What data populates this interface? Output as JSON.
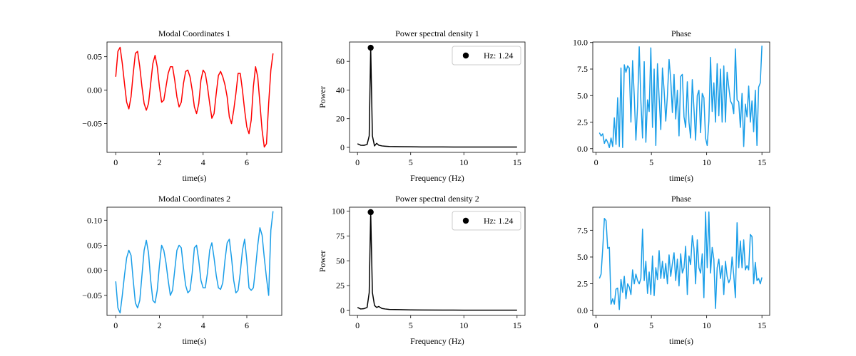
{
  "chart_data": [
    {
      "type": "line",
      "title": "Modal Coordinates 1",
      "xlabel": "time(s)",
      "ylabel": "",
      "color": "#ff0000",
      "xlim": [
        -0.4,
        7.6
      ],
      "ylim": [
        -0.093,
        0.072
      ],
      "xticks": [
        0,
        2,
        4,
        6
      ],
      "yticks": [
        -0.05,
        0.0,
        0.05
      ],
      "ytick_labels": [
        "−0.05",
        "0.00",
        "0.05"
      ],
      "series": [
        {
          "x": [
            0,
            0.1,
            0.2,
            0.3,
            0.4,
            0.5,
            0.6,
            0.7,
            0.8,
            0.9,
            1.0,
            1.1,
            1.2,
            1.3,
            1.4,
            1.5,
            1.6,
            1.7,
            1.8,
            1.9,
            2.0,
            2.1,
            2.2,
            2.3,
            2.4,
            2.5,
            2.6,
            2.7,
            2.8,
            2.9,
            3.0,
            3.1,
            3.2,
            3.3,
            3.4,
            3.5,
            3.6,
            3.7,
            3.8,
            3.9,
            4.0,
            4.1,
            4.2,
            4.3,
            4.4,
            4.5,
            4.6,
            4.7,
            4.8,
            4.9,
            5.0,
            5.1,
            5.2,
            5.3,
            5.4,
            5.5,
            5.6,
            5.7,
            5.8,
            5.9,
            6.0,
            6.1,
            6.2,
            6.3,
            6.4,
            6.5,
            6.6,
            6.7,
            6.8,
            6.9,
            7.0,
            7.1,
            7.2
          ],
          "y": [
            0.02,
            0.058,
            0.064,
            0.04,
            0.01,
            -0.018,
            -0.028,
            -0.01,
            0.025,
            0.055,
            0.058,
            0.035,
            0.005,
            -0.02,
            -0.03,
            -0.02,
            0.01,
            0.04,
            0.052,
            0.035,
            0.005,
            -0.018,
            -0.015,
            0.005,
            0.025,
            0.035,
            0.035,
            0.015,
            -0.01,
            -0.025,
            -0.018,
            0.01,
            0.028,
            0.03,
            0.02,
            0.0,
            -0.025,
            -0.035,
            -0.02,
            0.015,
            0.03,
            0.025,
            0.005,
            -0.02,
            -0.042,
            -0.035,
            -0.005,
            0.022,
            0.028,
            0.02,
            0.008,
            -0.01,
            -0.04,
            -0.05,
            -0.03,
            -0.005,
            0.025,
            0.025,
            0.0,
            -0.03,
            -0.055,
            -0.065,
            -0.045,
            0.005,
            0.035,
            0.02,
            -0.02,
            -0.06,
            -0.085,
            -0.08,
            -0.02,
            0.03,
            0.055
          ]
        }
      ]
    },
    {
      "type": "line",
      "title": "Power spectral density 1",
      "xlabel": "Frequency (Hz)",
      "ylabel": "Power",
      "color": "#000000",
      "xlim": [
        -0.75,
        15.75
      ],
      "ylim": [
        -3.5,
        73.5
      ],
      "xticks": [
        0,
        5,
        10,
        15
      ],
      "yticks": [
        0,
        20,
        40,
        60
      ],
      "series": [
        {
          "x": [
            0,
            0.3,
            0.6,
            0.9,
            1.1,
            1.24,
            1.4,
            1.6,
            1.8,
            2.0,
            2.3,
            2.6,
            3.0,
            4,
            5,
            6,
            8,
            10,
            12,
            15
          ],
          "y": [
            2.5,
            1.5,
            1.4,
            2.0,
            8.0,
            69.5,
            8.0,
            1.0,
            2.8,
            1.5,
            1.0,
            0.8,
            0.6,
            0.5,
            0.4,
            0.3,
            0.3,
            0.2,
            0.2,
            0.2
          ]
        }
      ],
      "peak": {
        "x": 1.24,
        "y": 69.5
      },
      "legend": {
        "label": "Hz: 1.24",
        "loc": "upper right"
      }
    },
    {
      "type": "line",
      "title": "Phase",
      "xlabel": "time(s)",
      "ylabel": "",
      "color": "#1a9ee8",
      "xlim": [
        -0.3,
        15.7
      ],
      "ylim": [
        -0.35,
        10.05
      ],
      "xticks": [
        0,
        5,
        10,
        15
      ],
      "yticks": [
        0.0,
        2.5,
        5.0,
        7.5,
        10.0
      ],
      "ytick_labels": [
        "0.0",
        "2.5",
        "5.0",
        "7.5",
        "10.0"
      ],
      "series": [
        {
          "x": [
            0.3,
            0.45,
            0.6,
            0.75,
            0.9,
            1.05,
            1.2,
            1.35,
            1.5,
            1.65,
            1.8,
            1.95,
            2.1,
            2.25,
            2.4,
            2.55,
            2.7,
            2.85,
            3.0,
            3.15,
            3.3,
            3.45,
            3.6,
            3.75,
            3.9,
            4.05,
            4.2,
            4.35,
            4.5,
            4.65,
            4.8,
            4.95,
            5.1,
            5.25,
            5.4,
            5.55,
            5.7,
            5.85,
            6.0,
            6.15,
            6.3,
            6.45,
            6.6,
            6.75,
            6.9,
            7.05,
            7.2,
            7.35,
            7.5,
            7.65,
            7.8,
            7.95,
            8.1,
            8.25,
            8.4,
            8.55,
            8.7,
            8.85,
            9.0,
            9.15,
            9.3,
            9.45,
            9.6,
            9.75,
            9.9,
            10.05,
            10.2,
            10.35,
            10.5,
            10.65,
            10.8,
            10.95,
            11.1,
            11.25,
            11.4,
            11.55,
            11.7,
            11.85,
            12.0,
            12.15,
            12.3,
            12.45,
            12.6,
            12.75,
            12.9,
            13.05,
            13.2,
            13.35,
            13.5,
            13.65,
            13.8,
            13.95,
            14.1,
            14.25,
            14.4,
            14.55,
            14.7,
            14.85,
            15.0
          ],
          "y": [
            1.5,
            1.2,
            1.4,
            0.5,
            0.9,
            0.6,
            0.1,
            1.0,
            0.2,
            2.9,
            0.4,
            4.8,
            0.2,
            7.6,
            0.1,
            7.9,
            7.2,
            7.8,
            7.6,
            2.5,
            8.3,
            5.0,
            0.8,
            4.0,
            9.6,
            4.5,
            1.0,
            8.2,
            0.6,
            4.6,
            3.5,
            9.5,
            2.0,
            7.5,
            0.3,
            8.0,
            4.8,
            1.8,
            7.6,
            5.5,
            2.6,
            5.0,
            8.4,
            6.5,
            3.4,
            7.0,
            2.8,
            5.5,
            1.2,
            6.8,
            7.0,
            3.0,
            2.0,
            6.3,
            2.5,
            1.0,
            6.5,
            3.8,
            0.8,
            5.0,
            5.5,
            1.5,
            5.2,
            4.8,
            1.0,
            0.3,
            2.6,
            8.6,
            3.5,
            6.2,
            2.5,
            8.0,
            3.1,
            7.5,
            2.5,
            7.8,
            2.5,
            7.2,
            5.8,
            4.5,
            4.2,
            3.3,
            9.4,
            4.6,
            4.4,
            2.0,
            5.2,
            0.2,
            4.2,
            3.0,
            5.9,
            2.5,
            4.5,
            1.6,
            5.5,
            0.3,
            5.8,
            6.2,
            9.7
          ]
        }
      ]
    },
    {
      "type": "line",
      "title": "Modal Coordinates 2",
      "xlabel": "time(s)",
      "ylabel": "",
      "color": "#1a9ee8",
      "xlim": [
        -0.4,
        7.6
      ],
      "ylim": [
        -0.09,
        0.126
      ],
      "xticks": [
        0,
        2,
        4,
        6
      ],
      "yticks": [
        -0.05,
        0.0,
        0.05,
        0.1
      ],
      "ytick_labels": [
        "−0.05",
        "0.00",
        "0.05",
        "0.10"
      ],
      "series": [
        {
          "x": [
            0,
            0.1,
            0.2,
            0.3,
            0.4,
            0.5,
            0.6,
            0.7,
            0.8,
            0.9,
            1.0,
            1.1,
            1.2,
            1.3,
            1.4,
            1.5,
            1.6,
            1.7,
            1.8,
            1.9,
            2.0,
            2.1,
            2.2,
            2.3,
            2.4,
            2.5,
            2.6,
            2.7,
            2.8,
            2.9,
            3.0,
            3.1,
            3.2,
            3.3,
            3.4,
            3.5,
            3.6,
            3.7,
            3.8,
            3.9,
            4.0,
            4.1,
            4.2,
            4.3,
            4.4,
            4.5,
            4.6,
            4.7,
            4.8,
            4.9,
            5.0,
            5.1,
            5.2,
            5.3,
            5.4,
            5.5,
            5.6,
            5.7,
            5.8,
            5.9,
            6.0,
            6.1,
            6.2,
            6.3,
            6.4,
            6.5,
            6.6,
            6.7,
            6.8,
            6.9,
            7.0,
            7.1,
            7.2
          ],
          "y": [
            -0.022,
            -0.075,
            -0.085,
            -0.05,
            -0.01,
            0.025,
            0.04,
            0.03,
            -0.02,
            -0.065,
            -0.075,
            -0.06,
            -0.01,
            0.04,
            0.06,
            0.035,
            -0.02,
            -0.06,
            -0.065,
            -0.04,
            0.01,
            0.05,
            0.04,
            0.015,
            -0.02,
            -0.05,
            -0.04,
            0.0,
            0.04,
            0.05,
            0.045,
            0.005,
            -0.03,
            -0.045,
            -0.04,
            -0.005,
            0.045,
            0.05,
            0.02,
            -0.02,
            -0.035,
            -0.035,
            -0.005,
            0.04,
            0.055,
            0.025,
            -0.01,
            -0.035,
            -0.038,
            -0.025,
            0.02,
            0.055,
            0.062,
            0.025,
            -0.02,
            -0.045,
            -0.04,
            -0.005,
            0.04,
            0.062,
            0.02,
            -0.035,
            -0.04,
            -0.035,
            0.005,
            0.05,
            0.085,
            0.07,
            0.025,
            -0.015,
            -0.05,
            0.08,
            0.118
          ]
        }
      ]
    },
    {
      "type": "line",
      "title": "Power spectral density 2",
      "xlabel": "Frequency (Hz)",
      "ylabel": "Power",
      "color": "#000000",
      "xlim": [
        -0.75,
        15.75
      ],
      "ylim": [
        -5,
        104
      ],
      "xticks": [
        0,
        5,
        10,
        15
      ],
      "yticks": [
        0,
        25,
        50,
        75,
        100
      ],
      "series": [
        {
          "x": [
            0,
            0.3,
            0.6,
            0.9,
            1.1,
            1.24,
            1.4,
            1.6,
            1.8,
            2.0,
            2.3,
            2.6,
            3.0,
            4,
            5,
            6,
            8,
            10,
            12,
            15
          ],
          "y": [
            3.0,
            1.5,
            1.8,
            3.0,
            18.0,
            99.0,
            18.0,
            5.0,
            3.0,
            4.0,
            2.0,
            1.5,
            1.0,
            0.8,
            0.6,
            0.5,
            0.4,
            0.3,
            0.3,
            0.3
          ]
        }
      ],
      "peak": {
        "x": 1.24,
        "y": 99.0
      },
      "legend": {
        "label": "Hz: 1.24",
        "loc": "upper right"
      }
    },
    {
      "type": "line",
      "title": "Phase",
      "xlabel": "time(s)",
      "ylabel": "",
      "color": "#1a9ee8",
      "xlim": [
        -0.3,
        15.7
      ],
      "ylim": [
        -0.45,
        9.65
      ],
      "xticks": [
        0,
        5,
        10,
        15
      ],
      "yticks": [
        0.0,
        2.5,
        5.0,
        7.5
      ],
      "ytick_labels": [
        "0.0",
        "2.5",
        "5.0",
        "7.5"
      ],
      "series": [
        {
          "x": [
            0.3,
            0.45,
            0.6,
            0.75,
            0.9,
            1.05,
            1.2,
            1.35,
            1.5,
            1.65,
            1.8,
            1.95,
            2.1,
            2.25,
            2.4,
            2.55,
            2.7,
            2.85,
            3.0,
            3.15,
            3.3,
            3.45,
            3.6,
            3.75,
            3.9,
            4.05,
            4.2,
            4.35,
            4.5,
            4.65,
            4.8,
            4.95,
            5.1,
            5.25,
            5.4,
            5.55,
            5.7,
            5.85,
            6.0,
            6.15,
            6.3,
            6.45,
            6.6,
            6.75,
            6.9,
            7.05,
            7.2,
            7.35,
            7.5,
            7.65,
            7.8,
            7.95,
            8.1,
            8.25,
            8.4,
            8.55,
            8.7,
            8.85,
            9.0,
            9.15,
            9.3,
            9.45,
            9.6,
            9.75,
            9.9,
            10.05,
            10.2,
            10.35,
            10.5,
            10.65,
            10.8,
            10.95,
            11.1,
            11.25,
            11.4,
            11.55,
            11.7,
            11.85,
            12.0,
            12.15,
            12.3,
            12.45,
            12.6,
            12.75,
            12.9,
            13.05,
            13.2,
            13.35,
            13.5,
            13.65,
            13.8,
            13.95,
            14.1,
            14.25,
            14.4,
            14.55,
            14.7,
            14.85,
            15.0
          ],
          "y": [
            3.0,
            3.4,
            5.8,
            8.6,
            8.4,
            5.8,
            5.9,
            0.6,
            1.1,
            0.6,
            2.0,
            2.1,
            0.1,
            2.9,
            1.7,
            3.2,
            1.1,
            2.5,
            2.2,
            1.5,
            3.8,
            2.5,
            3.4,
            2.8,
            2.5,
            3.0,
            7.6,
            2.8,
            4.6,
            1.6,
            3.6,
            1.5,
            5.1,
            1.4,
            4.0,
            2.9,
            5.6,
            3.0,
            4.6,
            3.0,
            4.4,
            2.5,
            5.2,
            3.2,
            4.4,
            5.4,
            2.8,
            4.8,
            2.3,
            5.3,
            3.5,
            4.0,
            6.0,
            1.5,
            5.1,
            4.3,
            7.0,
            5.8,
            2.5,
            6.6,
            4.0,
            3.5,
            5.3,
            1.2,
            9.2,
            4.0,
            9.2,
            3.5,
            5.9,
            4.8,
            0.2,
            4.0,
            4.8,
            3.0,
            4.2,
            1.5,
            4.6,
            3.2,
            2.6,
            3.0,
            5.0,
            3.3,
            1.2,
            8.2,
            4.0,
            6.5,
            4.0,
            6.6,
            3.8,
            4.2,
            3.8,
            7.1,
            6.9,
            2.5,
            4.5,
            2.8,
            3.0,
            2.5,
            3.1
          ]
        }
      ]
    }
  ]
}
